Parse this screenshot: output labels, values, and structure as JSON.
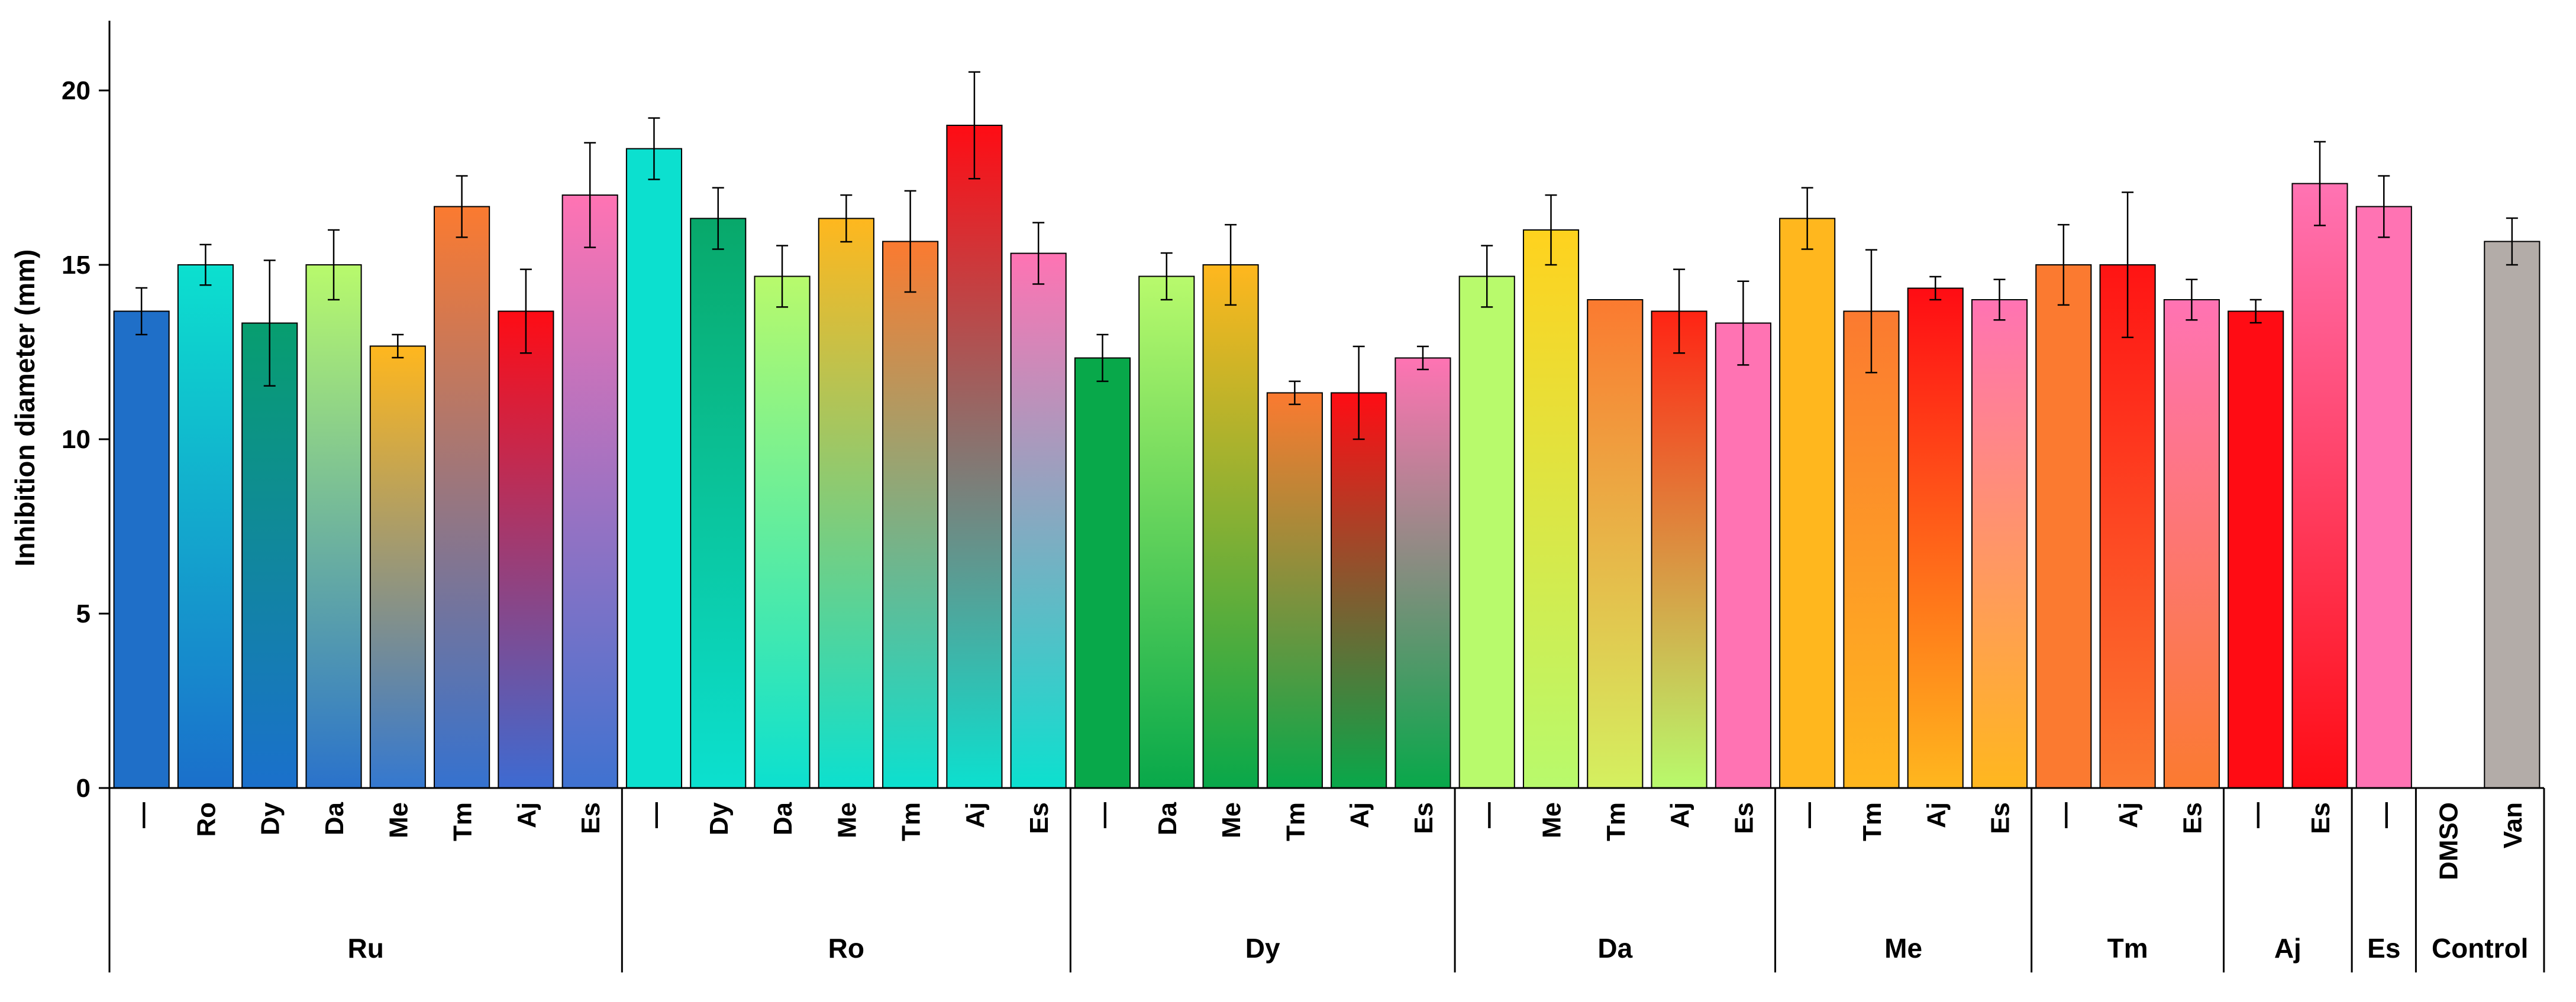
{
  "chart_data": {
    "type": "bar",
    "ylabel": "Inhibition diameter (mm)",
    "ylim": [
      0,
      22
    ],
    "yticks": [
      0,
      5,
      10,
      15,
      20
    ],
    "grid": false,
    "groups": [
      {
        "label": "Ru",
        "bars": [
          {
            "label": "—",
            "value": 13.67,
            "error": 0.67,
            "colors": [
              "#1f6fc8",
              "#1f6fc8"
            ]
          },
          {
            "label": "Ro",
            "value": 15.0,
            "error": 0.58,
            "colors": [
              "#0ce0cf",
              "#1a6fcb"
            ]
          },
          {
            "label": "Dy",
            "value": 13.33,
            "error": 1.8,
            "colors": [
              "#079e6f",
              "#1a70cc"
            ]
          },
          {
            "label": "Da",
            "value": 15.0,
            "error": 1.0,
            "colors": [
              "#b8fa6c",
              "#2a72cb"
            ]
          },
          {
            "label": "Me",
            "value": 12.67,
            "error": 0.33,
            "colors": [
              "#ffb71e",
              "#3478d0"
            ]
          },
          {
            "label": "Tm",
            "value": 16.67,
            "error": 0.88,
            "colors": [
              "#fb7a30",
              "#3572cf"
            ]
          },
          {
            "label": "Aj",
            "value": 13.67,
            "error": 1.2,
            "colors": [
              "#ff0c14",
              "#3d6bd2"
            ]
          },
          {
            "label": "Es",
            "value": 17.0,
            "error": 1.5,
            "colors": [
              "#ff73b3",
              "#3f72d0"
            ]
          }
        ]
      },
      {
        "label": "Ro",
        "bars": [
          {
            "label": "—",
            "value": 18.33,
            "error": 0.88,
            "colors": [
              "#0ce0cf",
              "#0ce0cf"
            ]
          },
          {
            "label": "Dy",
            "value": 16.33,
            "error": 0.88,
            "colors": [
              "#08a86a",
              "#0ce0cf"
            ]
          },
          {
            "label": "Da",
            "value": 14.67,
            "error": 0.88,
            "colors": [
              "#b8fa6c",
              "#0ce0cf"
            ]
          },
          {
            "label": "Me",
            "value": 16.33,
            "error": 0.67,
            "colors": [
              "#ffb71e",
              "#0ce0cf"
            ]
          },
          {
            "label": "Tm",
            "value": 15.67,
            "error": 1.45,
            "colors": [
              "#fb7a30",
              "#0ce0cf"
            ]
          },
          {
            "label": "Aj",
            "value": 19.0,
            "error": 1.53,
            "colors": [
              "#ff0c14",
              "#0ce0cf"
            ]
          },
          {
            "label": "Es",
            "value": 15.33,
            "error": 0.88,
            "colors": [
              "#ff73b3",
              "#0ce0cf"
            ]
          }
        ]
      },
      {
        "label": "Dy",
        "bars": [
          {
            "label": "—",
            "value": 12.33,
            "error": 0.67,
            "colors": [
              "#08a84a",
              "#08a84a"
            ]
          },
          {
            "label": "Da",
            "value": 14.67,
            "error": 0.67,
            "colors": [
              "#b8fa6c",
              "#08a84a"
            ]
          },
          {
            "label": "Me",
            "value": 15.0,
            "error": 1.15,
            "colors": [
              "#ffb71e",
              "#08a84a"
            ]
          },
          {
            "label": "Tm",
            "value": 11.33,
            "error": 0.33,
            "colors": [
              "#fb7a30",
              "#08a84a"
            ]
          },
          {
            "label": "Aj",
            "value": 11.33,
            "error": 1.33,
            "colors": [
              "#ff0c14",
              "#08a84a"
            ]
          },
          {
            "label": "Es",
            "value": 12.33,
            "error": 0.33,
            "colors": [
              "#ff73b3",
              "#08a84a"
            ]
          }
        ]
      },
      {
        "label": "Da",
        "bars": [
          {
            "label": "—",
            "value": 14.67,
            "error": 0.88,
            "colors": [
              "#b8fa6c",
              "#b8fa6c"
            ]
          },
          {
            "label": "Me",
            "value": 16.0,
            "error": 1.0,
            "colors": [
              "#ffd21e",
              "#b8fa6c"
            ]
          },
          {
            "label": "Tm",
            "value": 14.0,
            "error": 0.0,
            "colors": [
              "#fb7a30",
              "#d4f060"
            ]
          },
          {
            "label": "Aj",
            "value": 13.67,
            "error": 1.2,
            "colors": [
              "#ff2414",
              "#b8fa6c"
            ]
          },
          {
            "label": "Es",
            "value": 13.33,
            "error": 1.2,
            "colors": [
              "#ff73b3",
              "#ff73b3"
            ]
          }
        ]
      },
      {
        "label": "Me",
        "bars": [
          {
            "label": "—",
            "value": 16.33,
            "error": 0.88,
            "colors": [
              "#ffb71e",
              "#ffb71e"
            ]
          },
          {
            "label": "Tm",
            "value": 13.67,
            "error": 1.76,
            "colors": [
              "#fb7a30",
              "#ffb71e"
            ]
          },
          {
            "label": "Aj",
            "value": 14.33,
            "error": 0.33,
            "colors": [
              "#ff0c14",
              "#ffb71e"
            ]
          },
          {
            "label": "Es",
            "value": 14.0,
            "error": 0.58,
            "colors": [
              "#ff73b3",
              "#ffb71e"
            ]
          }
        ]
      },
      {
        "label": "Tm",
        "bars": [
          {
            "label": "—",
            "value": 15.0,
            "error": 1.15,
            "colors": [
              "#fb7a30",
              "#fb7a30"
            ]
          },
          {
            "label": "Aj",
            "value": 15.0,
            "error": 2.08,
            "colors": [
              "#ff1414",
              "#fb7a30"
            ]
          },
          {
            "label": "Es",
            "value": 14.0,
            "error": 0.58,
            "colors": [
              "#ff73b3",
              "#fb7a30"
            ]
          }
        ]
      },
      {
        "label": "Aj",
        "bars": [
          {
            "label": "—",
            "value": 13.67,
            "error": 0.33,
            "colors": [
              "#ff0c14",
              "#ff0c14"
            ]
          },
          {
            "label": "Es",
            "value": 17.33,
            "error": 1.2,
            "colors": [
              "#ff73b3",
              "#ff0c14"
            ]
          }
        ]
      },
      {
        "label": "Es",
        "bars": [
          {
            "label": "—",
            "value": 16.67,
            "error": 0.88,
            "colors": [
              "#ff73b3",
              "#ff73b3"
            ]
          }
        ]
      },
      {
        "label": "Control",
        "bars": [
          {
            "label": "DMSO",
            "value": 0,
            "error": 0,
            "colors": [
              "#ffffff",
              "#ffffff"
            ]
          },
          {
            "label": "Van",
            "value": 15.67,
            "error": 0.67,
            "colors": [
              "#b3aca8",
              "#b3aca8"
            ]
          }
        ]
      }
    ]
  }
}
